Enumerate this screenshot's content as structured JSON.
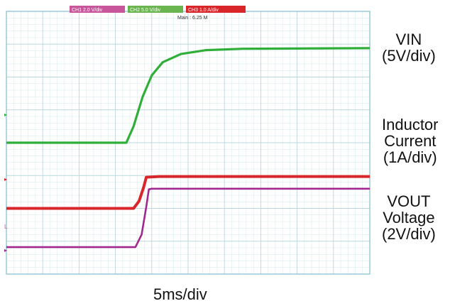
{
  "scope": {
    "colors": {
      "background": "#ffffff",
      "frame": "#7fbfd0",
      "grid_major": "#b9d7de",
      "grid_minor": "#d6e8ec"
    },
    "header": {
      "ch1": {
        "label": "CH1 2.0 V/div",
        "color": "#c8569a"
      },
      "ch2": {
        "label": "CH2 5.0 V/div",
        "color": "#6ab54f"
      },
      "ch3": {
        "label": "CH3 1.0 A/div",
        "color": "#d8262a"
      },
      "main": "Main : 6.25 M"
    },
    "time_scale": "5ms/div"
  },
  "chart_data": {
    "type": "line",
    "divisions": {
      "x": 10,
      "y": 8
    },
    "x_unit": "div",
    "y_unit": "div",
    "xlim": [
      0,
      10
    ],
    "ylim": [
      0,
      8
    ],
    "series": [
      {
        "label_lines": [
          "VIN",
          "(5V/div)"
        ],
        "color": "#2fae3a",
        "width": 3.2,
        "points": [
          [
            0,
            4.0
          ],
          [
            3.3,
            4.0
          ],
          [
            3.5,
            4.5
          ],
          [
            3.75,
            5.4
          ],
          [
            4.0,
            6.05
          ],
          [
            4.3,
            6.45
          ],
          [
            4.8,
            6.7
          ],
          [
            5.5,
            6.82
          ],
          [
            6.5,
            6.86
          ],
          [
            10,
            6.88
          ]
        ]
      },
      {
        "label_lines": [
          "Inductor",
          "Current",
          "(1A/div)"
        ],
        "color": "#d8262a",
        "width": 4.0,
        "points": [
          [
            0,
            2.0
          ],
          [
            3.5,
            2.0
          ],
          [
            3.65,
            2.22
          ],
          [
            3.78,
            2.65
          ],
          [
            3.85,
            2.95
          ],
          [
            4.2,
            2.97
          ],
          [
            10,
            2.97
          ]
        ]
      },
      {
        "label_lines": [
          "VOUT",
          "Voltage",
          "(2V/div)"
        ],
        "color": "#a0288f",
        "width": 2.6,
        "points": [
          [
            0,
            0.82
          ],
          [
            3.55,
            0.82
          ],
          [
            3.72,
            1.2
          ],
          [
            3.85,
            2.05
          ],
          [
            3.92,
            2.58
          ],
          [
            4.0,
            2.6
          ],
          [
            10,
            2.6
          ]
        ]
      }
    ]
  }
}
